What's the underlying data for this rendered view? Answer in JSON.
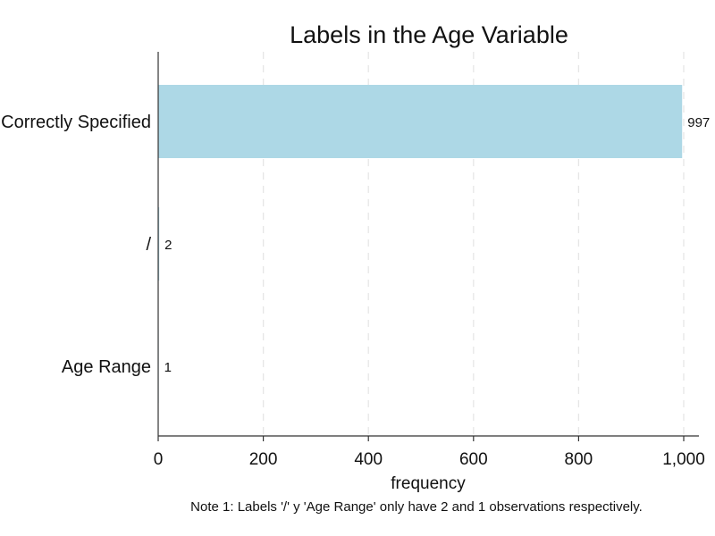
{
  "chart_data": {
    "type": "bar",
    "orientation": "horizontal",
    "title": "Labels in the Age Variable",
    "xlabel": "frequency",
    "ylabel": "",
    "categories": [
      "Correctly Specified",
      "/",
      "Age Range"
    ],
    "values": [
      997,
      2,
      1
    ],
    "data_labels": [
      "997",
      "2",
      "1"
    ],
    "xlim": [
      0,
      1000
    ],
    "xticks": [
      0,
      200,
      400,
      600,
      800,
      1000
    ],
    "xtick_labels": [
      "0",
      "200",
      "400",
      "600",
      "800",
      "1,000"
    ],
    "grid": "vertical dashed",
    "bar_color": "#add8e6",
    "note": "Note 1: Labels '/' y 'Age Range' only have 2 and 1 observations respectively."
  }
}
